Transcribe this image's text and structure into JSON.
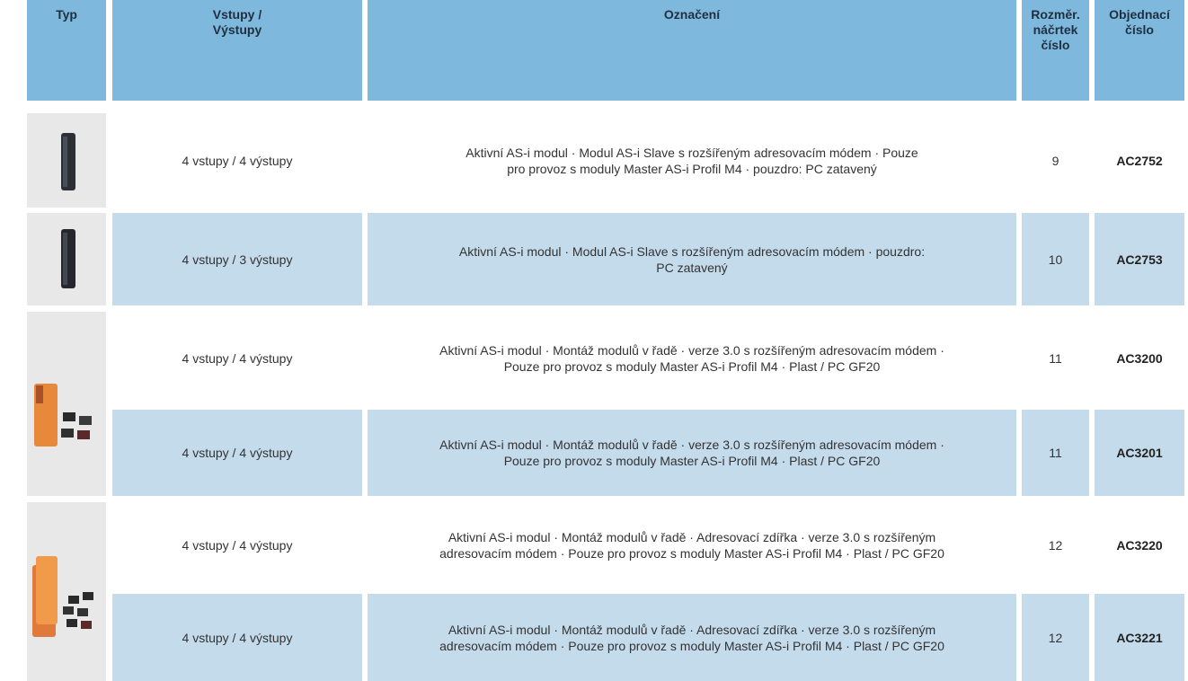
{
  "header": [
    "Typ",
    "Vstupy /\nVýstupy",
    "Označení",
    "Rozměr.\nnáčrtek\nčíslo",
    "Objednací\nčíslo"
  ],
  "rows": [
    {
      "io": "4 vstupy / 4 výstupy",
      "description": "Aktivní AS-i modul · Modul AS-i Slave s rozšířeným adresovacím módem · Pouze\npro provoz s moduly Master AS-i Profil M4 · pouzdro: PC zatavený",
      "sketch": 9,
      "order": "AC2752"
    },
    {
      "io": "4 vstupy / 3 výstupy",
      "description": "Aktivní AS-i modul · Modul AS-i Slave s rozšířeným adresovacím módem · pouzdro:\nPC zatavený",
      "sketch": 10,
      "order": "AC2753"
    },
    {
      "io": "4 vstupy / 4 výstupy",
      "description": "Aktivní AS-i modul · Montáž modulů v řadě · verze 3.0 s rozšířeným adresovacím módem ·\nPouze pro provoz s moduly Master AS-i Profil M4 · Plast / PC GF20",
      "sketch": 11,
      "order": "AC3200"
    },
    {
      "io": "4 vstupy / 4 výstupy",
      "description": "Aktivní AS-i modul · Montáž modulů v řadě · verze 3.0 s rozšířeným adresovacím módem ·\nPouze pro provoz s moduly Master AS-i Profil M4 · Plast / PC GF20",
      "sketch": 11,
      "order": "AC3201"
    },
    {
      "io": "4 vstupy / 4 výstupy",
      "description": "Aktivní AS-i modul · Montáž modulů v řadě · Adresovací zdířka · verze 3.0 s rozšířeným\nadresovacím módem · Pouze pro provoz s moduly Master AS-i Profil M4 · Plast / PC GF20",
      "sketch": 12,
      "order": "AC3220"
    },
    {
      "io": "4 vstupy / 4 výstupy",
      "description": "Aktivní AS-i modul · Montáž modulů v řadě · Adresovací zdířka · verze 3.0 s rozšířeným\nadresovacím módem · Pouze pro provoz s moduly Master AS-i Profil M4 · Plast / PC GF20",
      "sketch": 12,
      "order": "AC3221"
    }
  ]
}
